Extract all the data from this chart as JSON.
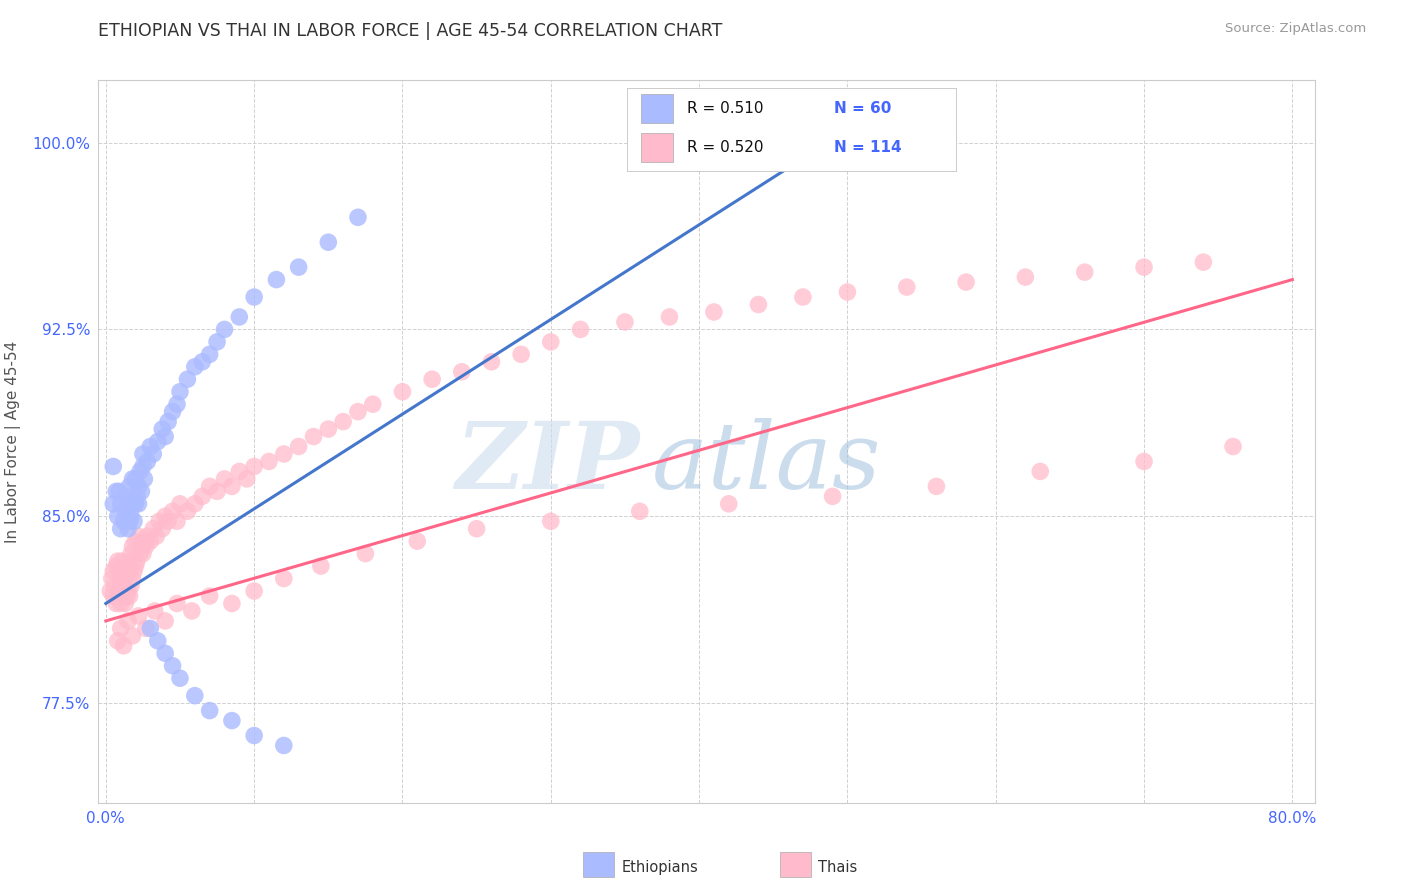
{
  "title": "ETHIOPIAN VS THAI IN LABOR FORCE | AGE 45-54 CORRELATION CHART",
  "source": "Source: ZipAtlas.com",
  "ylabel": "In Labor Force | Age 45-54",
  "xlim": [
    -0.005,
    0.815
  ],
  "ylim": [
    0.735,
    1.025
  ],
  "xtick_positions": [
    0.0,
    0.1,
    0.2,
    0.3,
    0.4,
    0.5,
    0.6,
    0.7,
    0.8
  ],
  "xtick_labels": [
    "0.0%",
    "",
    "",
    "",
    "",
    "",
    "",
    "",
    "80.0%"
  ],
  "ytick_positions": [
    0.775,
    0.85,
    0.925,
    1.0
  ],
  "ytick_labels": [
    "77.5%",
    "85.0%",
    "92.5%",
    "100.0%"
  ],
  "legend_r_eth": "R = 0.510",
  "legend_n_eth": "N = 60",
  "legend_r_thai": "R = 0.520",
  "legend_n_thai": "N = 114",
  "blue_color": "#aabbff",
  "pink_color": "#ffbbcc",
  "blue_line_color": "#4477cc",
  "pink_line_color": "#ff6688",
  "tick_color": "#4466ff",
  "blue_line": [
    [
      0.0,
      0.815
    ],
    [
      0.5,
      1.005
    ]
  ],
  "pink_line": [
    [
      0.0,
      0.808
    ],
    [
      0.8,
      0.945
    ]
  ],
  "blue_pts_x": [
    0.005,
    0.005,
    0.007,
    0.008,
    0.009,
    0.01,
    0.01,
    0.012,
    0.013,
    0.014,
    0.015,
    0.015,
    0.016,
    0.016,
    0.017,
    0.018,
    0.018,
    0.019,
    0.02,
    0.02,
    0.021,
    0.022,
    0.022,
    0.023,
    0.024,
    0.025,
    0.025,
    0.026,
    0.028,
    0.03,
    0.032,
    0.035,
    0.038,
    0.04,
    0.042,
    0.045,
    0.048,
    0.05,
    0.055,
    0.06,
    0.065,
    0.07,
    0.075,
    0.08,
    0.09,
    0.1,
    0.115,
    0.13,
    0.15,
    0.17,
    0.03,
    0.035,
    0.04,
    0.045,
    0.05,
    0.06,
    0.07,
    0.085,
    0.1,
    0.12
  ],
  "blue_pts_y": [
    0.87,
    0.855,
    0.86,
    0.85,
    0.86,
    0.845,
    0.855,
    0.848,
    0.852,
    0.858,
    0.845,
    0.855,
    0.848,
    0.862,
    0.85,
    0.855,
    0.865,
    0.848,
    0.855,
    0.865,
    0.858,
    0.862,
    0.855,
    0.868,
    0.86,
    0.87,
    0.875,
    0.865,
    0.872,
    0.878,
    0.875,
    0.88,
    0.885,
    0.882,
    0.888,
    0.892,
    0.895,
    0.9,
    0.905,
    0.91,
    0.912,
    0.915,
    0.92,
    0.925,
    0.93,
    0.938,
    0.945,
    0.95,
    0.96,
    0.97,
    0.805,
    0.8,
    0.795,
    0.79,
    0.785,
    0.778,
    0.772,
    0.768,
    0.762,
    0.758
  ],
  "pink_pts_x": [
    0.003,
    0.004,
    0.005,
    0.005,
    0.006,
    0.007,
    0.007,
    0.008,
    0.008,
    0.009,
    0.009,
    0.01,
    0.01,
    0.011,
    0.011,
    0.012,
    0.012,
    0.013,
    0.013,
    0.014,
    0.014,
    0.015,
    0.015,
    0.016,
    0.016,
    0.017,
    0.017,
    0.018,
    0.018,
    0.019,
    0.02,
    0.02,
    0.021,
    0.022,
    0.023,
    0.024,
    0.025,
    0.026,
    0.027,
    0.028,
    0.03,
    0.032,
    0.034,
    0.036,
    0.038,
    0.04,
    0.042,
    0.045,
    0.048,
    0.05,
    0.055,
    0.06,
    0.065,
    0.07,
    0.075,
    0.08,
    0.085,
    0.09,
    0.095,
    0.1,
    0.11,
    0.12,
    0.13,
    0.14,
    0.15,
    0.16,
    0.17,
    0.18,
    0.2,
    0.22,
    0.24,
    0.26,
    0.28,
    0.3,
    0.32,
    0.35,
    0.38,
    0.41,
    0.44,
    0.47,
    0.5,
    0.54,
    0.58,
    0.62,
    0.66,
    0.7,
    0.74,
    0.008,
    0.01,
    0.012,
    0.015,
    0.018,
    0.022,
    0.027,
    0.033,
    0.04,
    0.048,
    0.058,
    0.07,
    0.085,
    0.1,
    0.12,
    0.145,
    0.175,
    0.21,
    0.25,
    0.3,
    0.36,
    0.42,
    0.49,
    0.56,
    0.63,
    0.7,
    0.76
  ],
  "pink_pts_y": [
    0.82,
    0.825,
    0.818,
    0.828,
    0.822,
    0.815,
    0.83,
    0.818,
    0.832,
    0.82,
    0.828,
    0.815,
    0.825,
    0.818,
    0.832,
    0.82,
    0.828,
    0.815,
    0.825,
    0.818,
    0.83,
    0.82,
    0.828,
    0.818,
    0.832,
    0.822,
    0.835,
    0.825,
    0.838,
    0.828,
    0.83,
    0.84,
    0.832,
    0.842,
    0.835,
    0.838,
    0.835,
    0.84,
    0.838,
    0.842,
    0.84,
    0.845,
    0.842,
    0.848,
    0.845,
    0.85,
    0.848,
    0.852,
    0.848,
    0.855,
    0.852,
    0.855,
    0.858,
    0.862,
    0.86,
    0.865,
    0.862,
    0.868,
    0.865,
    0.87,
    0.872,
    0.875,
    0.878,
    0.882,
    0.885,
    0.888,
    0.892,
    0.895,
    0.9,
    0.905,
    0.908,
    0.912,
    0.915,
    0.92,
    0.925,
    0.928,
    0.93,
    0.932,
    0.935,
    0.938,
    0.94,
    0.942,
    0.944,
    0.946,
    0.948,
    0.95,
    0.952,
    0.8,
    0.805,
    0.798,
    0.808,
    0.802,
    0.81,
    0.805,
    0.812,
    0.808,
    0.815,
    0.812,
    0.818,
    0.815,
    0.82,
    0.825,
    0.83,
    0.835,
    0.84,
    0.845,
    0.848,
    0.852,
    0.855,
    0.858,
    0.862,
    0.868,
    0.872,
    0.878
  ]
}
